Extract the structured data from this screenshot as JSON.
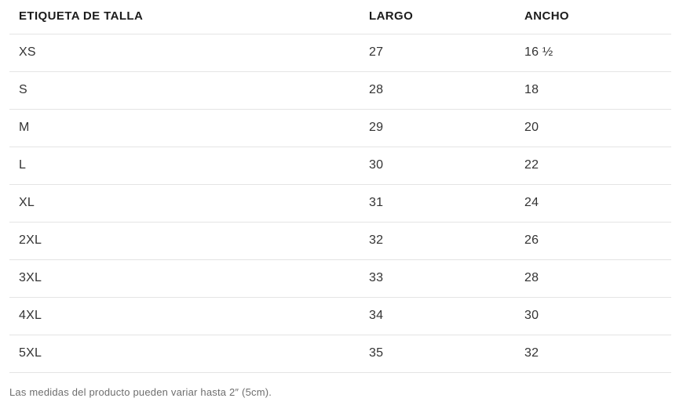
{
  "colors": {
    "header_text": "#1c1c1c",
    "cell_text": "#333333",
    "divider": "#e4e4e4",
    "note_text": "#6e6e6e",
    "background": "#ffffff"
  },
  "chart_data": {
    "type": "table",
    "title": "",
    "columns": [
      "ETIQUETA DE TALLA",
      "LARGO",
      "ANCHO"
    ],
    "rows": [
      [
        "XS",
        "27",
        "16 ½"
      ],
      [
        "S",
        "28",
        "18"
      ],
      [
        "M",
        "29",
        "20"
      ],
      [
        "L",
        "30",
        "22"
      ],
      [
        "XL",
        "31",
        "24"
      ],
      [
        "2XL",
        "32",
        "26"
      ],
      [
        "3XL",
        "33",
        "28"
      ],
      [
        "4XL",
        "34",
        "30"
      ],
      [
        "5XL",
        "35",
        "32"
      ]
    ],
    "footnote": "Las medidas del producto pueden variar hasta 2″ (5cm)."
  }
}
